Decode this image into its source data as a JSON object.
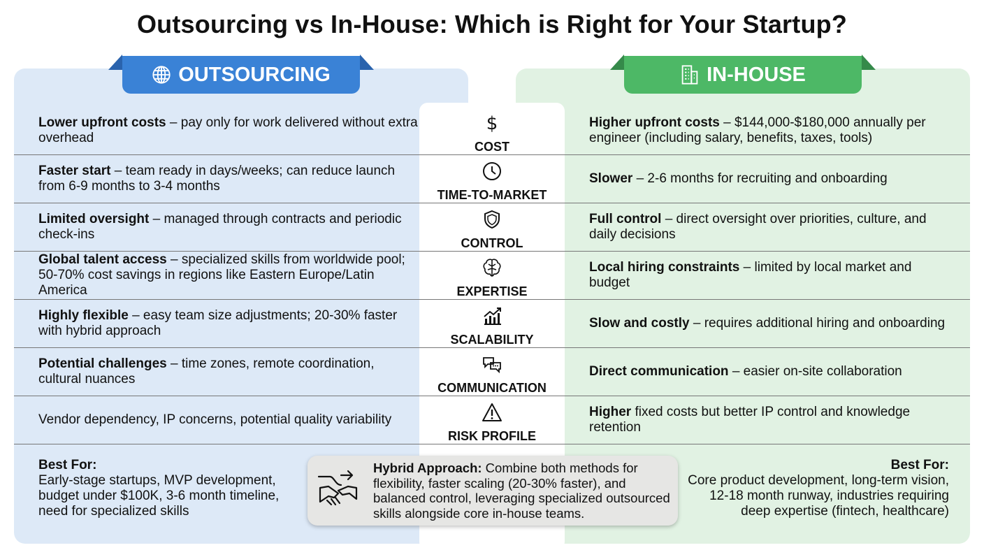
{
  "title": "Outsourcing vs In-House: Which is Right for Your Startup?",
  "left_header": "OUTSOURCING",
  "right_header": "IN-HOUSE",
  "rows": [
    {
      "category": "COST",
      "icon": "dollar-icon",
      "left_bold": "Lower upfront costs",
      "left_text": " – pay only for work delivered without extra overhead",
      "right_bold": "Higher upfront costs",
      "right_text": " – $144,000-$180,000 annually per engineer (including salary, benefits, taxes, tools)"
    },
    {
      "category": "TIME-TO-MARKET",
      "icon": "clock-icon",
      "left_bold": "Faster start",
      "left_text": " – team ready in days/weeks; can reduce launch from 6-9 months to 3-4 months",
      "right_bold": "Slower",
      "right_text": " – 2-6 months for recruiting and onboarding"
    },
    {
      "category": "CONTROL",
      "icon": "shield-icon",
      "left_bold": "Limited oversight",
      "left_text": " – managed through contracts and periodic check-ins",
      "right_bold": "Full control",
      "right_text": " – direct oversight over priorities, culture, and daily decisions"
    },
    {
      "category": "EXPERTISE",
      "icon": "brain-icon",
      "left_bold": "Global talent access",
      "left_text": " – specialized skills from worldwide pool; 50-70% cost savings in regions like Eastern Europe/Latin America",
      "right_bold": "Local hiring constraints",
      "right_text": " – limited by local market and budget"
    },
    {
      "category": "SCALABILITY",
      "icon": "growth-chart-icon",
      "left_bold": "Highly flexible",
      "left_text": " – easy team size adjustments; 20-30% faster with hybrid approach",
      "right_bold": "Slow and costly",
      "right_text": " – requires additional hiring and onboarding"
    },
    {
      "category": "COMMUNICATION",
      "icon": "chat-bubbles-icon",
      "left_bold": "Potential challenges",
      "left_text": " – time zones, remote coordination, cultural nuances",
      "right_bold": "Direct communication",
      "right_text": " – easier on-site collaboration"
    },
    {
      "category": "RISK PROFILE",
      "icon": "warning-icon",
      "left_bold": "",
      "left_text": "Vendor dependency, IP concerns, potential quality variability",
      "right_bold": "Higher",
      "right_text": " fixed costs but better IP control and knowledge retention"
    }
  ],
  "best_left": {
    "label": "Best For:",
    "text": "Early-stage startups, MVP development, budget under $100K, 3-6 month timeline, need for specialized skills"
  },
  "best_right": {
    "label": "Best For:",
    "text": "Core product development, long-term vision, 12-18 month runway, industries requiring deep expertise (fintech, healthcare)"
  },
  "hybrid": {
    "label": "Hybrid Approach:",
    "text": " Combine both methods for flexibility, faster scaling (20-30% faster), and balanced control, leveraging specialized outsourced skills alongside core in-house teams."
  },
  "colors": {
    "outsourcing": "#3a82d6",
    "inhouse": "#4db866"
  }
}
